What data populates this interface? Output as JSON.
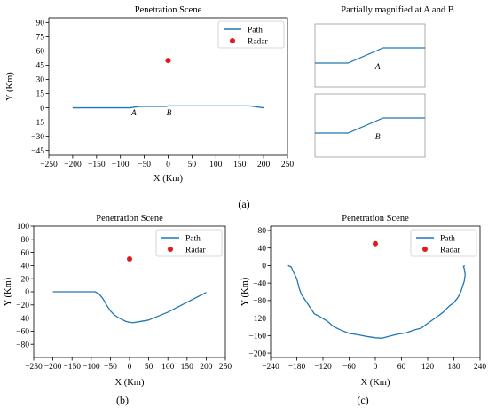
{
  "chart_data": [
    {
      "id": "a",
      "type": "line",
      "panel_label": "(a)",
      "title": "Penetration Scene",
      "xlabel": "X (Km)",
      "ylabel": "Y (Km)",
      "xlim": [
        -250,
        250
      ],
      "ylim": [
        -50,
        95
      ],
      "xticks": [
        -250,
        -200,
        -150,
        -100,
        -50,
        0,
        50,
        100,
        150,
        200,
        250
      ],
      "yticks": [
        -45,
        -30,
        -15,
        0,
        15,
        30,
        45,
        60,
        75,
        90
      ],
      "grid": false,
      "legend_position": "top-right",
      "legend": [
        "Path",
        "Radar"
      ],
      "series": [
        {
          "name": "Path",
          "color": "#1f77b4",
          "x": [
            -200,
            -80,
            -60,
            -5,
            0,
            170,
            200
          ],
          "y": [
            0,
            0,
            1.5,
            1.5,
            2,
            2,
            0
          ]
        },
        {
          "name": "Radar",
          "kind": "scatter",
          "color": "#e31a1c",
          "x": [
            0
          ],
          "y": [
            50
          ]
        }
      ],
      "annotations": [
        {
          "text": "A",
          "x": -72,
          "y": -8
        },
        {
          "text": "B",
          "x": 2,
          "y": -8
        }
      ]
    },
    {
      "id": "a-inset",
      "type": "line",
      "title": "Partially magnified at A and B",
      "insets": [
        {
          "label": "A",
          "color": "#1f77b4",
          "x": [
            0,
            0.3,
            0.62,
            1
          ],
          "y": [
            0.38,
            0.38,
            0.62,
            0.62
          ]
        },
        {
          "label": "B",
          "color": "#1f77b4",
          "x": [
            0,
            0.3,
            0.62,
            1
          ],
          "y": [
            0.38,
            0.38,
            0.62,
            0.62
          ]
        }
      ]
    },
    {
      "id": "b",
      "type": "line",
      "panel_label": "(b)",
      "title": "Penetration Scene",
      "xlabel": "X (Km)",
      "ylabel": "Y (Km)",
      "xlim": [
        -250,
        250
      ],
      "ylim": [
        -100,
        100
      ],
      "xticks": [
        -250,
        -200,
        -150,
        -100,
        -50,
        0,
        50,
        100,
        150,
        200,
        250
      ],
      "yticks": [
        -80,
        -60,
        -40,
        -20,
        0,
        20,
        40,
        60,
        80,
        100
      ],
      "grid": false,
      "legend_position": "top-right",
      "legend": [
        "Path",
        "Radar"
      ],
      "series": [
        {
          "name": "Path",
          "color": "#1f77b4",
          "x": [
            -200,
            -90,
            -80,
            -70,
            -60,
            -50,
            -40,
            -30,
            -20,
            -10,
            0,
            10,
            20,
            30,
            50,
            100,
            150,
            200
          ],
          "y": [
            0,
            0,
            -3,
            -10,
            -20,
            -29,
            -35,
            -39,
            -42,
            -45,
            -46.5,
            -47,
            -46,
            -45,
            -43,
            -31,
            -16,
            -1
          ]
        },
        {
          "name": "Radar",
          "kind": "scatter",
          "color": "#e31a1c",
          "x": [
            0
          ],
          "y": [
            50
          ]
        }
      ]
    },
    {
      "id": "c",
      "type": "line",
      "panel_label": "(c)",
      "title": "Penetration Scene",
      "xlabel": "X (Km)",
      "ylabel": "Y (Km)",
      "xlim": [
        -240,
        240
      ],
      "ylim": [
        -210,
        90
      ],
      "xticks": [
        -240,
        -180,
        -120,
        -60,
        0,
        60,
        120,
        180,
        240
      ],
      "yticks": [
        -200,
        -160,
        -120,
        -80,
        -40,
        0,
        40,
        80
      ],
      "grid": false,
      "legend_position": "top-right",
      "legend": [
        "Path",
        "Radar"
      ],
      "series": [
        {
          "name": "Path",
          "color": "#1f77b4",
          "x": [
            -200,
            -193,
            -185,
            -180,
            -175,
            -170,
            -160,
            -150,
            -140,
            -125,
            -110,
            -95,
            -80,
            -60,
            -40,
            -20,
            0,
            15,
            30,
            50,
            70,
            90,
            105,
            120,
            140,
            155,
            170,
            180,
            190,
            195,
            200,
            204,
            206,
            204,
            202,
            205
          ],
          "y": [
            0,
            -3,
            -20,
            -30,
            -50,
            -65,
            -80,
            -95,
            -110,
            -118,
            -127,
            -140,
            -147,
            -155,
            -158,
            -162,
            -165,
            -166,
            -162,
            -157,
            -154,
            -147,
            -143,
            -132,
            -118,
            -107,
            -92,
            -85,
            -72,
            -62,
            -48,
            -35,
            -20,
            -8,
            -2,
            0
          ]
        },
        {
          "name": "Radar",
          "kind": "scatter",
          "color": "#e31a1c",
          "x": [
            0
          ],
          "y": [
            50
          ]
        }
      ]
    }
  ]
}
